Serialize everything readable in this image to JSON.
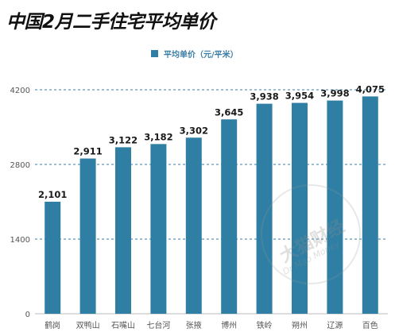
{
  "chart_data": {
    "type": "bar",
    "title": "中国2月二手住宅平均单价",
    "categories": [
      "鹤岗",
      "双鸭山",
      "石嘴山",
      "七台河",
      "张掖",
      "博州",
      "铁岭",
      "朔州",
      "辽源",
      "百色"
    ],
    "series": [
      {
        "name": "平均单价（元/平米）",
        "values": [
          2101,
          2911,
          3122,
          3182,
          3302,
          3645,
          3938,
          3954,
          3998,
          4075
        ]
      }
    ],
    "value_labels": [
      "2,101",
      "2,911",
      "3,122",
      "3,182",
      "3,302",
      "3,645",
      "3,938",
      "3,954",
      "3,998",
      "4,075"
    ],
    "yticks": [
      0,
      1400,
      2800,
      4200
    ],
    "ylim": [
      0,
      4200
    ],
    "xlabel": "",
    "ylabel": "",
    "grid": "horizontal-dashed",
    "legend_position": "top-center",
    "bar_color": "#2f7fa5",
    "grid_color": "#3a7ea5"
  },
  "watermark": {
    "main": "大猫财经",
    "sub": "Dr Mao Money"
  }
}
